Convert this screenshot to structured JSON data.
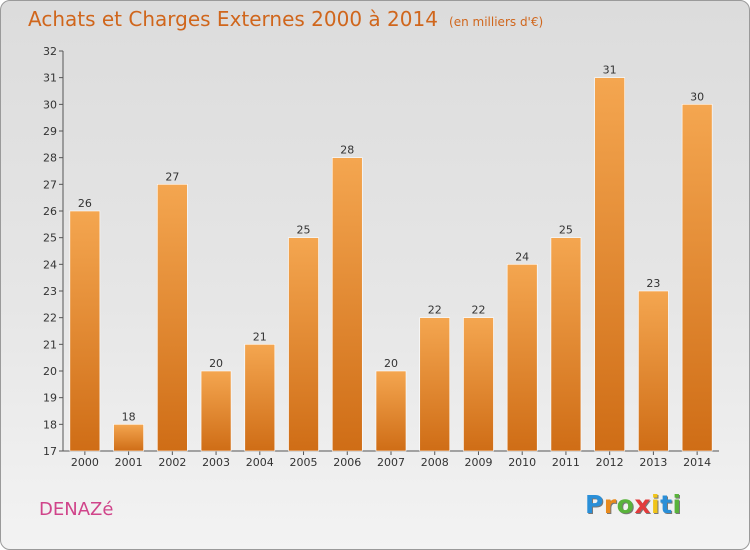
{
  "title": "Achats et Charges Externes 2000 à 2014",
  "unit_note": "(en milliers d'€)",
  "commune": "DENAZé",
  "logo": {
    "letters": [
      "P",
      "r",
      "o",
      "x",
      "i",
      "t",
      "i"
    ],
    "colors": [
      "#2a8fd8",
      "#e88a1e",
      "#59b33b",
      "#e23c3c",
      "#f0c419",
      "#2a8fd8",
      "#59b33b"
    ]
  },
  "colors": {
    "bar_top": "#f4a650",
    "bar_bottom": "#cf6d16",
    "title": "#d0661c",
    "commune": "#d0448a"
  },
  "chart_data": {
    "type": "bar",
    "title": "Achats et Charges Externes 2000 à 2014",
    "subtitle": "(en milliers d'€)",
    "categories": [
      "2000",
      "2001",
      "2002",
      "2003",
      "2004",
      "2005",
      "2006",
      "2007",
      "2008",
      "2009",
      "2010",
      "2011",
      "2012",
      "2013",
      "2014"
    ],
    "values": [
      26,
      18,
      27,
      20,
      21,
      25,
      28,
      20,
      22,
      22,
      24,
      25,
      31,
      23,
      30
    ],
    "ylim": [
      17,
      32
    ],
    "yticks": [
      17,
      18,
      19,
      20,
      21,
      22,
      23,
      24,
      25,
      26,
      27,
      28,
      29,
      30,
      31,
      32
    ],
    "grid": false,
    "xlabel": "",
    "ylabel": ""
  }
}
